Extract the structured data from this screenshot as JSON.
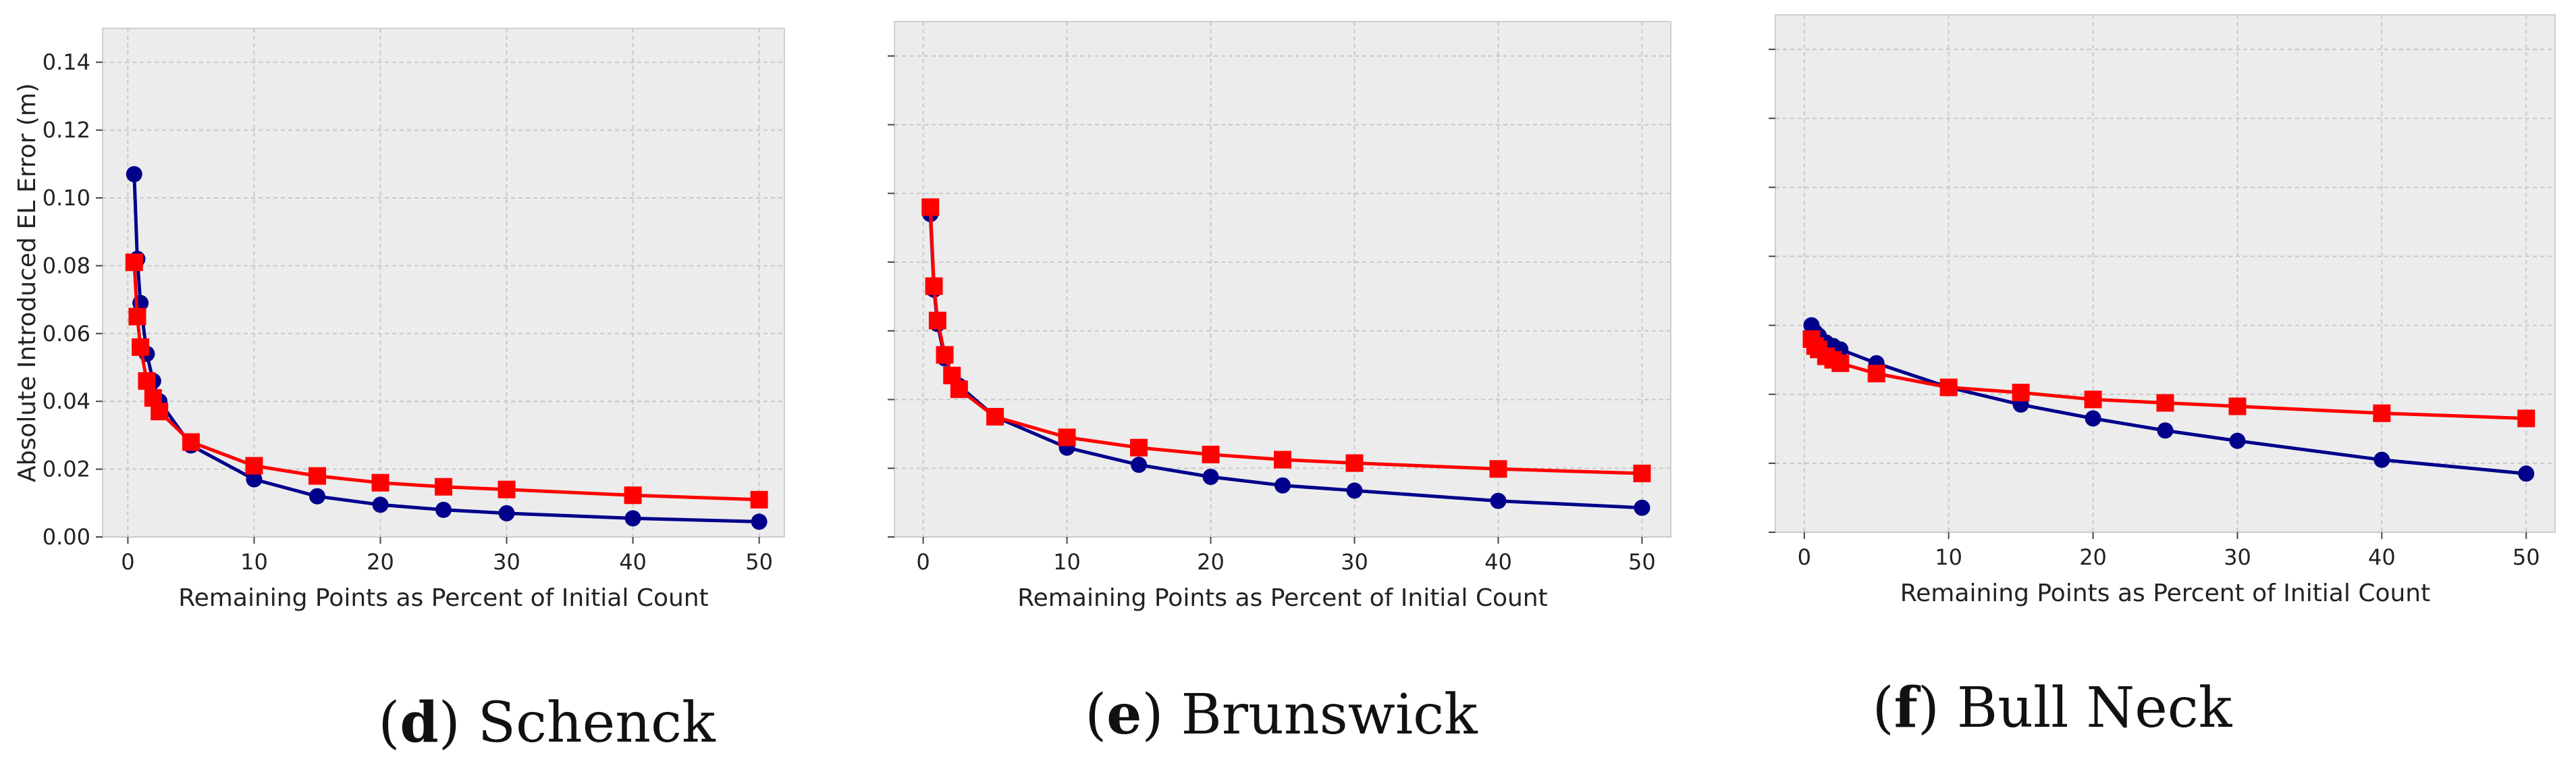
{
  "colors": {
    "series_circle": "#00008b",
    "series_square": "#ff0000",
    "plot_bg": "#ececec",
    "grid": "#c8c8c8"
  },
  "chart_data": [
    {
      "type": "line",
      "caption": {
        "letter": "d",
        "name": "Schenck"
      },
      "xlabel": "Remaining Points as Percent of Initial Count",
      "ylabel": "Absolute Introduced EL Error (m)",
      "xlim": [
        -2,
        52
      ],
      "ylim": [
        0,
        0.15
      ],
      "xticks": [
        0,
        10,
        20,
        30,
        40,
        50
      ],
      "yticks": [
        0.0,
        0.02,
        0.04,
        0.06,
        0.08,
        0.1,
        0.12,
        0.14
      ],
      "ytick_labels": [
        "0.00",
        "0.02",
        "0.04",
        "0.06",
        "0.08",
        "0.10",
        "0.12",
        "0.14"
      ],
      "show_ytick_labels": true,
      "grid": true,
      "series": [
        {
          "marker": "circle",
          "x": [
            0.5,
            0.75,
            1,
            1.5,
            2,
            2.5,
            5,
            10,
            15,
            20,
            25,
            30,
            40,
            50
          ],
          "y": [
            0.107,
            0.082,
            0.069,
            0.054,
            0.046,
            0.04,
            0.027,
            0.017,
            0.012,
            0.0095,
            0.008,
            0.007,
            0.0055,
            0.0045
          ]
        },
        {
          "marker": "square",
          "x": [
            0.5,
            0.75,
            1,
            1.5,
            2,
            2.5,
            5,
            10,
            15,
            20,
            25,
            30,
            40,
            50
          ],
          "y": [
            0.081,
            0.065,
            0.056,
            0.046,
            0.041,
            0.037,
            0.028,
            0.021,
            0.018,
            0.016,
            0.0148,
            0.014,
            0.0123,
            0.011
          ]
        }
      ]
    },
    {
      "type": "line",
      "caption": {
        "letter": "e",
        "name": "Brunswick"
      },
      "xlabel": "Remaining Points as Percent of Initial Count",
      "ylabel": "",
      "xlim": [
        -2,
        52
      ],
      "ylim": [
        0,
        0.15
      ],
      "xticks": [
        0,
        10,
        20,
        30,
        40,
        50
      ],
      "yticks": [
        0.0,
        0.02,
        0.04,
        0.06,
        0.08,
        0.1,
        0.12,
        0.14
      ],
      "show_ytick_labels": false,
      "grid": true,
      "series": [
        {
          "marker": "circle",
          "x": [
            0.5,
            0.75,
            1,
            1.5,
            2,
            2.5,
            5,
            10,
            15,
            20,
            25,
            30,
            40,
            50
          ],
          "y": [
            0.094,
            0.072,
            0.062,
            0.052,
            0.047,
            0.044,
            0.035,
            0.026,
            0.021,
            0.0175,
            0.015,
            0.0135,
            0.0105,
            0.0085
          ]
        },
        {
          "marker": "square",
          "x": [
            0.5,
            0.75,
            1,
            1.5,
            2,
            2.5,
            5,
            10,
            15,
            20,
            25,
            30,
            40,
            50
          ],
          "y": [
            0.096,
            0.073,
            0.063,
            0.053,
            0.047,
            0.043,
            0.035,
            0.029,
            0.026,
            0.024,
            0.0225,
            0.0215,
            0.0198,
            0.0185
          ]
        }
      ]
    },
    {
      "type": "line",
      "caption": {
        "letter": "f",
        "name": "Bull Neck"
      },
      "xlabel": "Remaining Points as Percent of Initial Count",
      "ylabel": "",
      "xlim": [
        -2,
        52
      ],
      "ylim": [
        0,
        0.15
      ],
      "xticks": [
        0,
        10,
        20,
        30,
        40,
        50
      ],
      "yticks": [
        0.0,
        0.02,
        0.04,
        0.06,
        0.08,
        0.1,
        0.12,
        0.14
      ],
      "show_ytick_labels": false,
      "grid": true,
      "series": [
        {
          "marker": "circle",
          "x": [
            0.5,
            0.75,
            1,
            1.5,
            2,
            2.5,
            5,
            10,
            15,
            20,
            25,
            30,
            40,
            50
          ],
          "y": [
            0.06,
            0.058,
            0.057,
            0.055,
            0.054,
            0.053,
            0.049,
            0.042,
            0.037,
            0.033,
            0.0295,
            0.0265,
            0.021,
            0.017
          ]
        },
        {
          "marker": "square",
          "x": [
            0.5,
            0.75,
            1,
            1.5,
            2,
            2.5,
            5,
            10,
            15,
            20,
            25,
            30,
            40,
            50
          ],
          "y": [
            0.056,
            0.054,
            0.053,
            0.051,
            0.05,
            0.049,
            0.046,
            0.042,
            0.0405,
            0.0385,
            0.0375,
            0.0365,
            0.0345,
            0.033
          ]
        }
      ]
    }
  ]
}
